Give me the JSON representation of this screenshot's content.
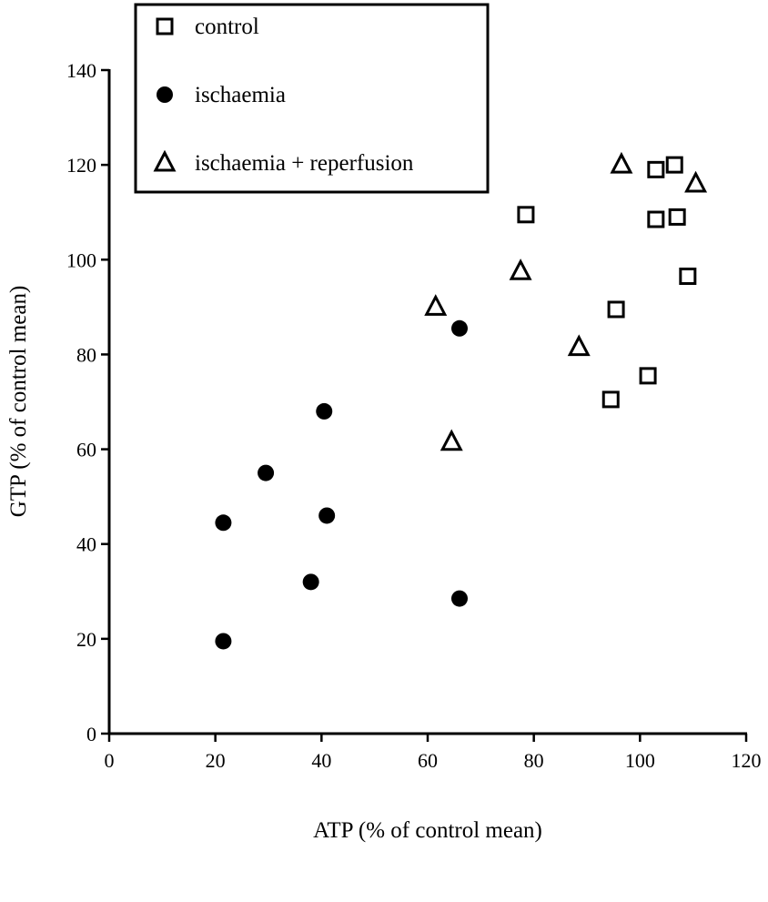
{
  "chart_data": {
    "type": "scatter",
    "xlabel": "ATP  (% of control mean)",
    "ylabel": "GTP  (% of control mean)",
    "xlim": [
      0,
      120
    ],
    "ylim": [
      0,
      140
    ],
    "xticks": [
      0,
      20,
      40,
      60,
      80,
      100,
      120
    ],
    "yticks": [
      0,
      20,
      40,
      60,
      80,
      100,
      120,
      140
    ],
    "grid": false,
    "legend_position": "top-left",
    "series": [
      {
        "name": "control",
        "marker": "open-square",
        "points": [
          [
            78.5,
            109.5
          ],
          [
            103,
            119
          ],
          [
            106.5,
            120
          ],
          [
            103,
            108.5
          ],
          [
            107,
            109
          ],
          [
            109,
            96.5
          ],
          [
            95.5,
            89.5
          ],
          [
            101.5,
            75.5
          ],
          [
            94.5,
            70.5
          ]
        ]
      },
      {
        "name": "ischaemia",
        "marker": "filled-circle",
        "points": [
          [
            66,
            85.5
          ],
          [
            40.5,
            68
          ],
          [
            29.5,
            55
          ],
          [
            41,
            46
          ],
          [
            21.5,
            44.5
          ],
          [
            38,
            32
          ],
          [
            66,
            28.5
          ],
          [
            21.5,
            19.5
          ]
        ]
      },
      {
        "name": "ischaemia + reperfusion",
        "marker": "open-triangle",
        "points": [
          [
            96.5,
            120
          ],
          [
            110.5,
            116
          ],
          [
            77.5,
            97.5
          ],
          [
            61.5,
            90
          ],
          [
            88.5,
            81.5
          ],
          [
            64.5,
            61.5
          ]
        ]
      }
    ]
  }
}
